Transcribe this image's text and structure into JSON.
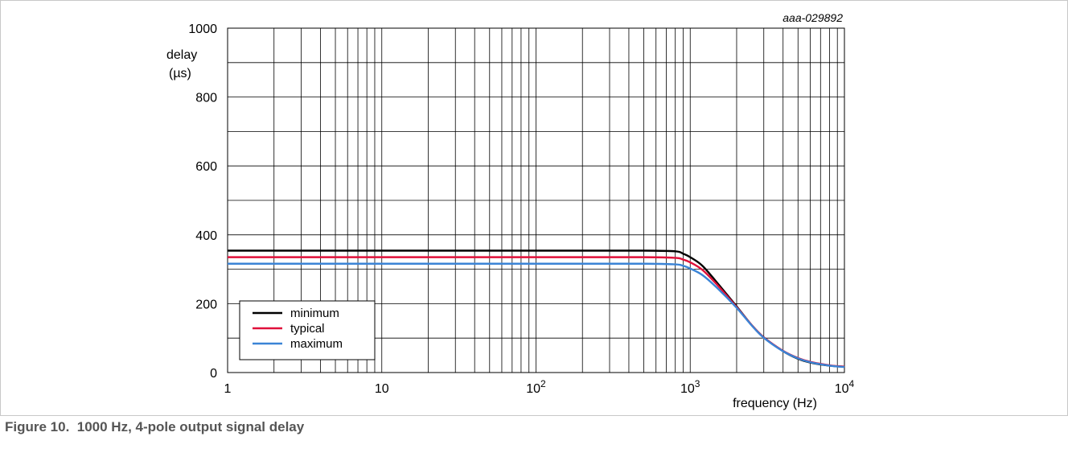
{
  "caption": "Figure 10.  1000 Hz, 4-pole output signal delay",
  "colors": {
    "grid": "#000000",
    "minimum": "#000000",
    "typical": "#e0103a",
    "maximum": "#3b84d6",
    "caption": "#555555"
  },
  "chart_data": {
    "type": "line",
    "title": "",
    "annotation": "aaa-029892",
    "xlabel": "frequency (Hz)",
    "ylabel": [
      "delay",
      "(µs)"
    ],
    "xscale": "log",
    "xlim": [
      1,
      10000
    ],
    "ylim": [
      0,
      1000
    ],
    "grid": true,
    "legend_position": "bottom-left",
    "x_ticks": [
      {
        "value": 1,
        "label": "1",
        "exp": ""
      },
      {
        "value": 10,
        "label": "10",
        "exp": ""
      },
      {
        "value": 100,
        "label": "10",
        "exp": "2"
      },
      {
        "value": 1000,
        "label": "10",
        "exp": "3"
      },
      {
        "value": 10000,
        "label": "10",
        "exp": "4"
      }
    ],
    "y_ticks": [
      {
        "value": 0,
        "label": "0"
      },
      {
        "value": 200,
        "label": "200"
      },
      {
        "value": 400,
        "label": "400"
      },
      {
        "value": 600,
        "label": "600"
      },
      {
        "value": 800,
        "label": "800"
      },
      {
        "value": 1000,
        "label": "1000"
      }
    ],
    "series": [
      {
        "name": "minimum",
        "color": "#000000",
        "x": [
          1,
          10,
          100,
          500,
          800,
          900,
          1000,
          1200,
          1500,
          2000,
          2500,
          3000,
          4000,
          5000,
          6000,
          8000,
          10000
        ],
        "y": [
          354,
          354,
          354,
          354,
          352,
          345,
          335,
          310,
          260,
          192,
          138,
          102,
          62,
          40,
          29,
          20,
          17
        ]
      },
      {
        "name": "typical",
        "color": "#e0103a",
        "x": [
          1,
          10,
          100,
          500,
          800,
          900,
          1000,
          1200,
          1500,
          2000,
          2500,
          3000,
          4000,
          5000,
          6000,
          8000,
          10000
        ],
        "y": [
          335,
          335,
          335,
          335,
          333,
          328,
          320,
          298,
          254,
          190,
          138,
          102,
          63,
          42,
          31,
          21,
          17
        ]
      },
      {
        "name": "maximum",
        "color": "#3b84d6",
        "x": [
          1,
          10,
          100,
          500,
          800,
          900,
          1000,
          1200,
          1500,
          2000,
          2500,
          3000,
          4000,
          5000,
          6000,
          8000,
          10000
        ],
        "y": [
          316,
          316,
          316,
          316,
          314,
          310,
          302,
          283,
          245,
          188,
          137,
          101,
          62,
          41,
          30,
          20,
          16
        ]
      }
    ]
  }
}
